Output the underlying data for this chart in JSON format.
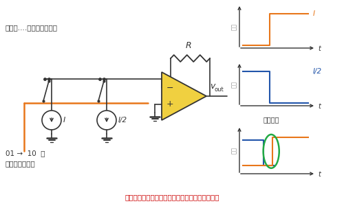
{
  "text_example": "例えば....電流モードでは",
  "text_switch": "01 →  10  に\n切り替えたとき",
  "text_bottom": "切り替えに時間差があるとグリッチが観測される",
  "text_glitch": "グリッチ",
  "text_denryu": "電流",
  "text_R": "R",
  "orange_color": "#e8761a",
  "blue_color": "#2255aa",
  "green_color": "#22aa44",
  "dark_color": "#333333",
  "yellow_color": "#f0d040",
  "red_color": "#cc0000",
  "gray_color": "#888888",
  "bg_color": "#ffffff"
}
